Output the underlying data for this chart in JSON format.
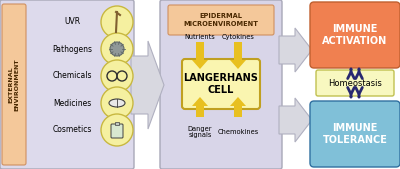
{
  "fig_width": 4.0,
  "fig_height": 1.69,
  "dpi": 100,
  "bg_color": "#ffffff",
  "external_bg": "#dddaec",
  "external_label_bg": "#f4c89a",
  "external_label_text": "EXTERNAL\nENVIRONMENT",
  "external_items": [
    "UVR",
    "Pathogens",
    "Chemicals",
    "Medicines",
    "Cosmetics"
  ],
  "epidermal_bg": "#d8d5e8",
  "epidermal_label": "EPIDERMAL\nMICROENVIROMENT",
  "epidermal_label_bg": "#f4c89a",
  "langerhans_bg": "#faf5b0",
  "langerhans_text": "LANGERHANS\nCELL",
  "top_labels": [
    "Nutrients",
    "Cytokines"
  ],
  "bottom_labels": [
    "Danger\nsignals",
    "Chemokines"
  ],
  "immune_activation_bg": "#f08050",
  "immune_activation_text": "IMMUNE\nACTIVATION",
  "homeostasis_bg": "#f8f8c0",
  "homeostasis_text": "Homeostasis",
  "immune_tolerance_bg": "#80c0d8",
  "immune_tolerance_text": "IMMUNE\nTOLERANCE",
  "arrow_color_yellow": "#e8c020",
  "arrow_color_gray": "#c8c8cc",
  "arrow_color_dark": "#282870",
  "cell_color": "#f5f0a0",
  "cell_border": "#c8b840",
  "border_color": "#a8a8b8"
}
